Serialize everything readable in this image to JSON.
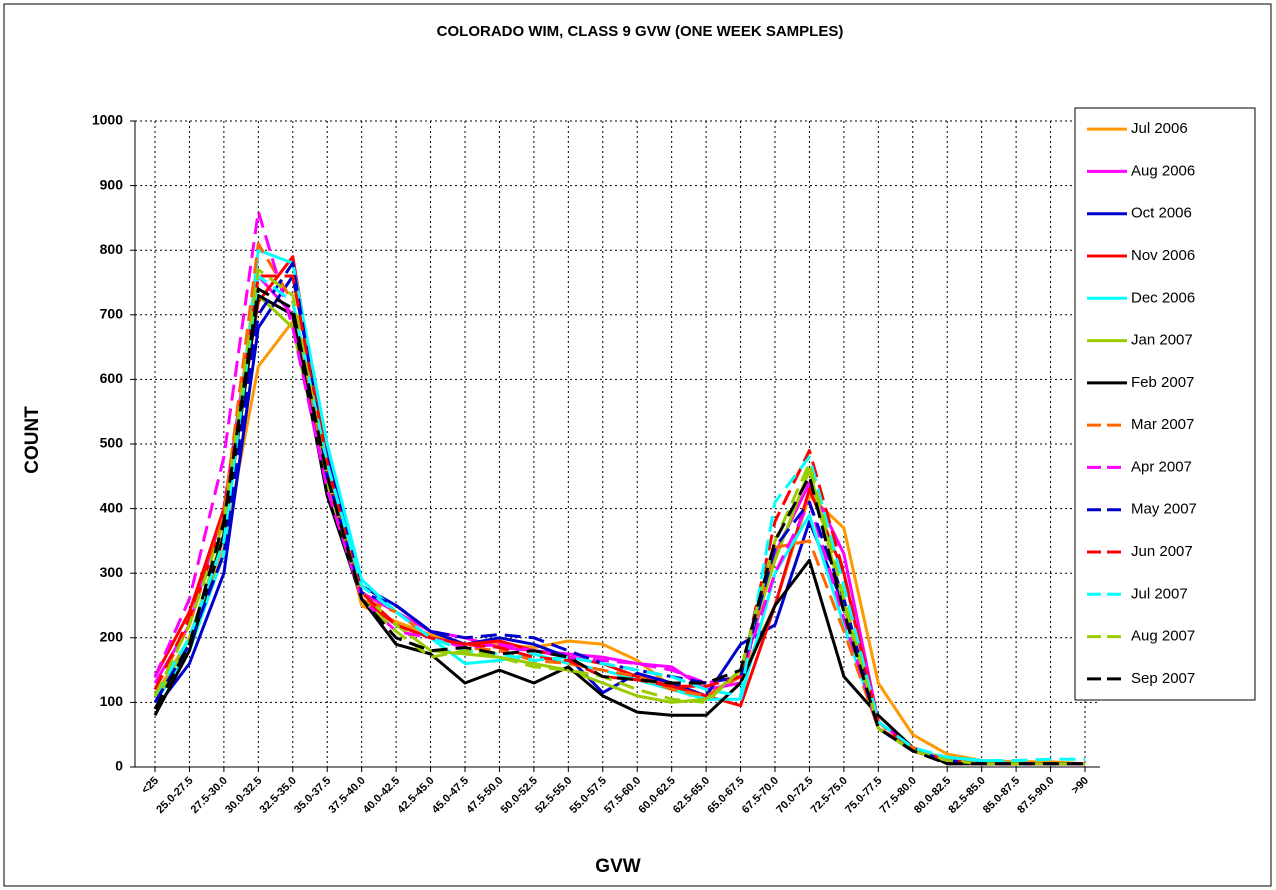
{
  "chart_data": {
    "type": "line",
    "title": "COLORADO WIM, CLASS 9 GVW (ONE WEEK SAMPLES)",
    "x_label": "GVW",
    "y_label": "COUNT",
    "categories": [
      "<25",
      "25.0-27.5",
      "27.5-30.0",
      "30.0-32.5",
      "32.5-35.0",
      "35.0-37.5",
      "37.5-40.0",
      "40.0-42.5",
      "42.5-45.0",
      "45.0-47.5",
      "47.5-50.0",
      "50.0-52.5",
      "52.5-55.0",
      "55.0-57.5",
      "57.5-60.0",
      "60.0-62.5",
      "62.5-65.0",
      "65.0-67.5",
      "67.5-70.0",
      "70.0-72.5",
      "72.5-75.0",
      "75.0-77.5",
      "77.5-80.0",
      "80.0-82.5",
      "82.5-85.0",
      "85.0-87.5",
      "87.5-90.0",
      ">90"
    ],
    "ylim": [
      0,
      1000
    ],
    "yticks": [
      0,
      100,
      200,
      300,
      400,
      500,
      600,
      700,
      800,
      900,
      1000
    ],
    "grid": true,
    "legend": "right",
    "series": [
      {
        "name": "Jul 2006",
        "color": "#FF9900",
        "dashed": false,
        "values": [
          110,
          200,
          340,
          620,
          690,
          470,
          250,
          225,
          205,
          190,
          190,
          185,
          195,
          190,
          165,
          125,
          110,
          140,
          250,
          420,
          370,
          130,
          50,
          20,
          10,
          8,
          8,
          5
        ]
      },
      {
        "name": "Aug 2006",
        "color": "#FF00FF",
        "dashed": false,
        "values": [
          130,
          220,
          400,
          760,
          700,
          420,
          270,
          240,
          210,
          200,
          185,
          180,
          175,
          170,
          160,
          155,
          120,
          130,
          330,
          440,
          330,
          70,
          30,
          10,
          5,
          5,
          5,
          5
        ]
      },
      {
        "name": "Oct 2006",
        "color": "#0000CC",
        "dashed": false,
        "values": [
          90,
          160,
          300,
          680,
          760,
          480,
          280,
          250,
          210,
          190,
          200,
          190,
          170,
          115,
          145,
          130,
          110,
          190,
          220,
          380,
          250,
          60,
          25,
          10,
          5,
          5,
          5,
          5
        ]
      },
      {
        "name": "Nov 2006",
        "color": "#FF0000",
        "dashed": false,
        "values": [
          140,
          240,
          400,
          720,
          790,
          470,
          260,
          220,
          200,
          190,
          195,
          180,
          170,
          160,
          140,
          125,
          110,
          95,
          250,
          430,
          300,
          60,
          25,
          10,
          5,
          5,
          5,
          5
        ]
      },
      {
        "name": "Dec 2006",
        "color": "#00FFFF",
        "dashed": false,
        "values": [
          100,
          180,
          330,
          800,
          780,
          500,
          290,
          240,
          200,
          160,
          165,
          175,
          160,
          150,
          135,
          120,
          105,
          105,
          300,
          390,
          220,
          60,
          25,
          15,
          10,
          5,
          5,
          5
        ]
      },
      {
        "name": "Jan 2007",
        "color": "#99CC00",
        "dashed": false,
        "values": [
          100,
          200,
          360,
          730,
          680,
          440,
          270,
          220,
          180,
          175,
          170,
          160,
          150,
          130,
          110,
          100,
          105,
          150,
          320,
          460,
          250,
          60,
          25,
          10,
          5,
          5,
          5,
          5
        ]
      },
      {
        "name": "Feb 2007",
        "color": "#000000",
        "dashed": false,
        "values": [
          80,
          180,
          360,
          730,
          700,
          420,
          260,
          190,
          175,
          130,
          150,
          130,
          155,
          110,
          85,
          80,
          80,
          130,
          250,
          320,
          140,
          80,
          30,
          5,
          5,
          5,
          5,
          5
        ]
      },
      {
        "name": "Mar 2007",
        "color": "#FF6600",
        "dashed": true,
        "values": [
          120,
          220,
          390,
          810,
          720,
          450,
          260,
          240,
          200,
          185,
          180,
          165,
          160,
          150,
          140,
          120,
          110,
          140,
          340,
          350,
          210,
          60,
          30,
          10,
          5,
          5,
          5,
          5
        ]
      },
      {
        "name": "Apr 2007",
        "color": "#FF00FF",
        "dashed": true,
        "values": [
          140,
          260,
          480,
          860,
          680,
          430,
          260,
          210,
          200,
          185,
          190,
          180,
          170,
          165,
          160,
          150,
          130,
          140,
          300,
          410,
          230,
          60,
          25,
          10,
          5,
          5,
          5,
          5
        ]
      },
      {
        "name": "May 2007",
        "color": "#0000CC",
        "dashed": true,
        "values": [
          100,
          190,
          330,
          700,
          780,
          450,
          270,
          250,
          210,
          200,
          205,
          200,
          180,
          160,
          150,
          140,
          130,
          140,
          340,
          410,
          260,
          60,
          25,
          10,
          5,
          5,
          5,
          5
        ]
      },
      {
        "name": "Jun 2007",
        "color": "#FF0000",
        "dashed": true,
        "values": [
          120,
          230,
          380,
          760,
          760,
          460,
          270,
          220,
          200,
          190,
          185,
          170,
          165,
          140,
          135,
          125,
          125,
          140,
          380,
          490,
          300,
          70,
          25,
          10,
          5,
          5,
          5,
          5
        ]
      },
      {
        "name": "Jul 2007",
        "color": "#00FFFF",
        "dashed": true,
        "values": [
          110,
          200,
          350,
          760,
          720,
          470,
          280,
          240,
          200,
          180,
          175,
          165,
          170,
          160,
          150,
          140,
          120,
          110,
          410,
          480,
          280,
          70,
          30,
          15,
          10,
          10,
          12,
          12
        ]
      },
      {
        "name": "Aug 2007",
        "color": "#99CC00",
        "dashed": true,
        "values": [
          110,
          220,
          380,
          770,
          730,
          450,
          260,
          210,
          170,
          180,
          170,
          155,
          150,
          140,
          120,
          105,
          100,
          150,
          350,
          470,
          260,
          60,
          25,
          10,
          5,
          5,
          5,
          5
        ]
      },
      {
        "name": "Sep 2007",
        "color": "#000000",
        "dashed": true,
        "values": [
          90,
          190,
          380,
          740,
          710,
          450,
          260,
          200,
          180,
          185,
          175,
          180,
          170,
          140,
          135,
          130,
          130,
          150,
          350,
          450,
          240,
          60,
          25,
          5,
          5,
          5,
          5,
          5
        ]
      }
    ]
  }
}
